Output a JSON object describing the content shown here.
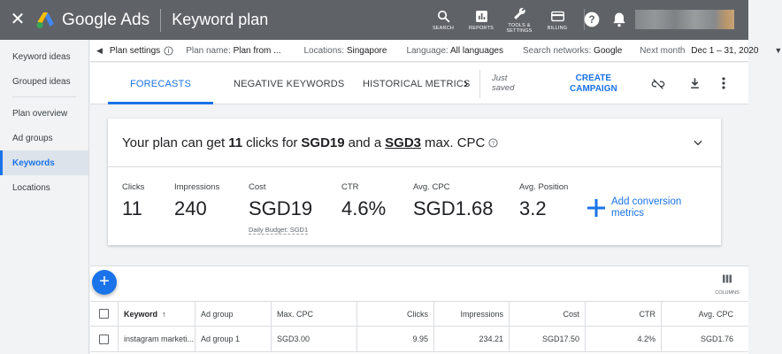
{
  "header": {
    "brand": "Google Ads",
    "page_title": "Keyword plan",
    "tools": [
      {
        "icon": "search-icon",
        "label": "SEARCH"
      },
      {
        "icon": "reports-icon",
        "label": "REPORTS"
      },
      {
        "icon": "wrench-icon",
        "label": "TOOLS & SETTINGS"
      },
      {
        "icon": "billing-icon",
        "label": "BILLING"
      }
    ]
  },
  "sidebar": {
    "items": [
      {
        "label": "Keyword ideas"
      },
      {
        "label": "Grouped ideas"
      },
      {
        "label": "Plan overview"
      },
      {
        "label": "Ad groups"
      },
      {
        "label": "Keywords"
      },
      {
        "label": "Locations"
      }
    ],
    "active": "Keywords"
  },
  "settings": {
    "plan_settings": "Plan settings",
    "plan_name_label": "Plan name:",
    "plan_name_value": "Plan from ...",
    "locations_label": "Locations:",
    "locations_value": "Singapore",
    "language_label": "Language:",
    "language_value": "All languages",
    "networks_label": "Search networks:",
    "networks_value": "Google",
    "period_label": "Next month",
    "period_value": "Dec 1 – 31, 2020"
  },
  "tabs": {
    "forecasts": "FORECASTS",
    "negative_keywords": "NEGATIVE KEYWORDS",
    "historical_metrics": "HISTORICAL METRICS",
    "status_line1": "Just",
    "status_line2": "saved",
    "create_line1": "CREATE",
    "create_line2": "CAMPAIGN"
  },
  "forecast": {
    "headline_prefix": "Your plan can get",
    "clicks_value": "11",
    "headline_mid1": "clicks for",
    "cost_value": "SGD19",
    "headline_mid2": "and a",
    "cpc_value": "SGD3",
    "headline_suffix": "max. CPC",
    "metrics": [
      {
        "label": "Clicks",
        "value": "11"
      },
      {
        "label": "Impressions",
        "value": "240"
      },
      {
        "label": "Cost",
        "value": "SGD19",
        "sub": "Daily Budget: SGD1"
      },
      {
        "label": "CTR",
        "value": "4.6%"
      },
      {
        "label": "Avg. CPC",
        "value": "SGD1.68"
      },
      {
        "label": "Avg. Position",
        "value": "3.2"
      }
    ],
    "add_conversion_line1": "Add conversion",
    "add_conversion_line2": "metrics"
  },
  "table": {
    "columns_label": "COLUMNS",
    "headers": [
      "Keyword",
      "Ad group",
      "Max. CPC",
      "Clicks",
      "Impressions",
      "Cost",
      "CTR",
      "Avg. CPC"
    ],
    "rows": [
      [
        "instagram marketi...",
        "Ad group 1",
        "SGD3.00",
        "9.95",
        "234.21",
        "SGD17.50",
        "4.2%",
        "SGD1.76"
      ]
    ]
  },
  "colors": {
    "topbar": "#5f6368",
    "accent": "#1a73e8"
  }
}
